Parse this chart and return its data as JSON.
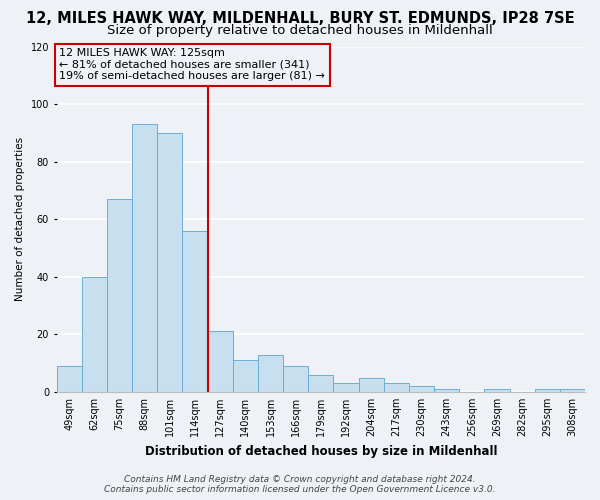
{
  "title1": "12, MILES HAWK WAY, MILDENHALL, BURY ST. EDMUNDS, IP28 7SE",
  "title2": "Size of property relative to detached houses in Mildenhall",
  "xlabel": "Distribution of detached houses by size in Mildenhall",
  "ylabel": "Number of detached properties",
  "categories": [
    "49sqm",
    "62sqm",
    "75sqm",
    "88sqm",
    "101sqm",
    "114sqm",
    "127sqm",
    "140sqm",
    "153sqm",
    "166sqm",
    "179sqm",
    "192sqm",
    "204sqm",
    "217sqm",
    "230sqm",
    "243sqm",
    "256sqm",
    "269sqm",
    "282sqm",
    "295sqm",
    "308sqm"
  ],
  "values": [
    9,
    40,
    67,
    93,
    90,
    56,
    21,
    11,
    13,
    9,
    6,
    3,
    5,
    3,
    2,
    1,
    0,
    1,
    0,
    1,
    1
  ],
  "bar_color": "#c8dff0",
  "bar_edge_color": "#6aafd6",
  "vline_color": "#cc0000",
  "annotation_title": "12 MILES HAWK WAY: 125sqm",
  "annotation_line1": "← 81% of detached houses are smaller (341)",
  "annotation_line2": "19% of semi-detached houses are larger (81) →",
  "annotation_box_edge": "#cc0000",
  "ylim": [
    0,
    120
  ],
  "yticks": [
    0,
    20,
    40,
    60,
    80,
    100,
    120
  ],
  "footer1": "Contains HM Land Registry data © Crown copyright and database right 2024.",
  "footer2": "Contains public sector information licensed under the Open Government Licence v3.0.",
  "bg_color": "#eef2f7",
  "grid_color": "#ffffff",
  "title1_fontsize": 10.5,
  "title2_fontsize": 9.5,
  "xlabel_fontsize": 8.5,
  "ylabel_fontsize": 7.5,
  "tick_fontsize": 7,
  "annotation_fontsize": 8,
  "footer_fontsize": 6.5
}
